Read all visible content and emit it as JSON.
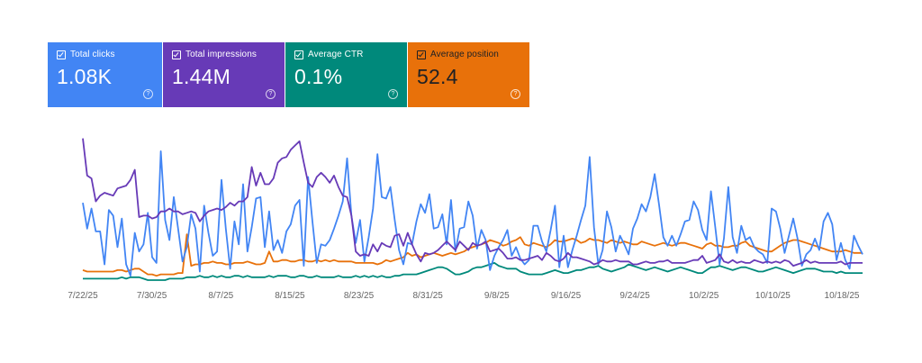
{
  "cards": [
    {
      "label": "Total clicks",
      "value": "1.08K",
      "color": "#4285f4"
    },
    {
      "label": "Total impressions",
      "value": "1.44M",
      "color": "#673ab7"
    },
    {
      "label": "Average CTR",
      "value": "0.1%",
      "color": "#00897b"
    },
    {
      "label": "Average position",
      "value": "52.4",
      "color": "#e8710a"
    }
  ],
  "chart_data": {
    "type": "line",
    "grid": false,
    "legend": "none",
    "x_start": "7/22/25",
    "x_end": "10/21/25",
    "xticks": [
      "7/22/25",
      "7/30/25",
      "8/7/25",
      "8/15/25",
      "8/23/25",
      "8/31/25",
      "9/8/25",
      "9/16/25",
      "9/24/25",
      "10/2/25",
      "10/10/25",
      "10/18/25"
    ],
    "ylim": [
      0,
      100
    ],
    "series": [
      {
        "color": "#4285f4",
        "values": [
          54,
          36,
          50,
          34,
          34,
          11,
          49,
          45,
          23,
          43,
          11,
          3,
          33,
          20,
          25,
          47,
          16,
          12,
          90,
          42,
          28,
          58,
          36,
          13,
          23,
          46,
          36,
          6,
          52,
          33,
          17,
          20,
          70,
          36,
          8,
          41,
          25,
          67,
          20,
          37,
          57,
          58,
          23,
          48,
          21,
          28,
          19,
          34,
          39,
          52,
          56,
          10,
          72,
          41,
          12,
          25,
          24,
          28,
          36,
          45,
          55,
          85,
          45,
          26,
          42,
          13,
          30,
          50,
          88,
          58,
          57,
          65,
          42,
          21,
          11,
          26,
          25,
          41,
          53,
          47,
          60,
          36,
          37,
          46,
          25,
          56,
          20,
          36,
          37,
          55,
          45,
          22,
          35,
          28,
          7,
          17,
          23,
          28,
          35,
          17,
          23,
          15,
          11,
          14,
          38,
          38,
          27,
          20,
          35,
          52,
          9,
          31,
          9,
          21,
          31,
          42,
          52,
          86,
          37,
          11,
          21,
          48,
          37,
          20,
          31,
          25,
          18,
          36,
          43,
          53,
          48,
          58,
          74,
          53,
          30,
          24,
          31,
          24,
          32,
          41,
          42,
          55,
          49,
          35,
          28,
          62,
          37,
          11,
          29,
          65,
          30,
          19,
          38,
          28,
          30,
          23,
          20,
          18,
          12,
          50,
          48,
          36,
          19,
          31,
          43,
          29,
          10,
          18,
          21,
          29,
          21,
          41,
          47,
          39,
          14,
          26,
          14,
          8,
          31,
          24,
          18
        ],
        "_note_unused": ""
      },
      {
        "color": "#673ab7",
        "values": [
          99,
          73,
          71,
          55,
          59,
          61,
          60,
          59,
          64,
          65,
          66,
          70,
          77,
          44,
          45,
          45,
          43,
          44,
          48,
          48,
          50,
          48,
          48,
          46,
          47,
          48,
          47,
          41,
          45,
          48,
          49,
          50,
          49,
          51,
          54,
          52,
          55,
          55,
          58,
          79,
          66,
          75,
          67,
          67,
          71,
          82,
          85,
          86,
          91,
          94,
          97,
          82,
          68,
          65,
          72,
          75,
          72,
          68,
          73,
          65,
          59,
          58,
          45,
          20,
          17,
          18,
          17,
          25,
          20,
          26,
          24,
          23,
          31,
          32,
          24,
          33,
          25,
          18,
          13,
          19,
          18,
          19,
          21,
          24,
          27,
          24,
          21,
          27,
          24,
          21,
          26,
          24,
          25,
          27,
          20,
          21,
          22,
          19,
          15,
          15,
          16,
          14,
          14,
          15,
          16,
          17,
          14,
          19,
          17,
          14,
          13,
          15,
          19,
          16,
          16,
          15,
          14,
          13,
          11,
          12,
          14,
          13,
          13,
          14,
          13,
          13,
          13,
          11,
          11,
          12,
          13,
          12,
          12,
          13,
          13,
          14,
          12,
          12,
          12,
          12,
          13,
          14,
          14,
          17,
          12,
          13,
          14,
          18,
          13,
          12,
          14,
          12,
          13,
          12,
          12,
          14,
          13,
          12,
          13,
          12,
          13,
          12,
          14,
          13,
          10,
          11,
          12,
          14,
          12,
          13,
          12,
          12,
          12,
          12,
          12,
          13,
          11,
          12,
          12,
          12,
          12
        ],
        "_note_unused": ""
      },
      {
        "color": "#e8710a",
        "values": [
          7,
          6,
          6,
          6,
          6,
          6,
          6,
          6,
          7,
          7,
          6,
          7,
          8,
          8,
          6,
          4,
          4,
          3,
          4,
          4,
          4,
          4,
          5,
          5,
          32,
          10,
          11,
          11,
          12,
          12,
          13,
          12,
          12,
          11,
          11,
          12,
          12,
          12,
          13,
          12,
          11,
          11,
          12,
          20,
          13,
          13,
          14,
          14,
          13,
          13,
          14,
          14,
          13,
          13,
          14,
          13,
          14,
          13,
          14,
          13,
          13,
          13,
          13,
          12,
          12,
          12,
          12,
          12,
          11,
          12,
          14,
          13,
          14,
          15,
          16,
          19,
          17,
          18,
          16,
          17,
          18,
          19,
          18,
          17,
          18,
          19,
          18,
          19,
          20,
          22,
          23,
          24,
          25,
          26,
          28,
          27,
          26,
          24,
          25,
          27,
          28,
          30,
          25,
          24,
          26,
          25,
          24,
          23,
          25,
          28,
          27,
          27,
          28,
          29,
          28,
          26,
          27,
          29,
          28,
          28,
          27,
          26,
          28,
          27,
          26,
          27,
          26,
          25,
          25,
          27,
          26,
          25,
          24,
          25,
          26,
          25,
          24,
          25,
          26,
          26,
          25,
          24,
          23,
          22,
          25,
          26,
          24,
          24,
          23,
          23,
          24,
          24,
          26,
          27,
          24,
          23,
          22,
          21,
          20,
          20,
          22,
          24,
          26,
          27,
          28,
          28,
          27,
          26,
          25,
          24,
          23,
          22,
          21,
          20,
          20,
          20,
          21,
          20,
          19,
          19,
          19
        ],
        "_note_unused": ""
      },
      {
        "color": "#00897b",
        "values": [
          1,
          1,
          1,
          1,
          1,
          1,
          1,
          1,
          1,
          2,
          1,
          2,
          2,
          2,
          1,
          0,
          0,
          0,
          0,
          0,
          1,
          1,
          1,
          1,
          2,
          2,
          2,
          3,
          2,
          2,
          3,
          2,
          3,
          2,
          2,
          3,
          3,
          2,
          3,
          2,
          2,
          2,
          2,
          3,
          2,
          3,
          3,
          3,
          2,
          2,
          3,
          3,
          2,
          2,
          3,
          2,
          2,
          2,
          2,
          3,
          2,
          2,
          2,
          3,
          2,
          3,
          2,
          3,
          2,
          3,
          2,
          2,
          3,
          3,
          4,
          4,
          4,
          4,
          5,
          6,
          7,
          8,
          9,
          9,
          8,
          6,
          4,
          4,
          5,
          6,
          8,
          9,
          9,
          10,
          11,
          12,
          10,
          9,
          8,
          8,
          8,
          6,
          5,
          4,
          4,
          4,
          4,
          5,
          6,
          7,
          6,
          5,
          5,
          6,
          7,
          7,
          8,
          9,
          9,
          10,
          8,
          7,
          6,
          7,
          8,
          9,
          11,
          10,
          9,
          8,
          7,
          8,
          9,
          8,
          7,
          6,
          7,
          8,
          9,
          8,
          7,
          6,
          5,
          5,
          7,
          9,
          9,
          10,
          9,
          8,
          7,
          8,
          9,
          9,
          8,
          7,
          6,
          6,
          7,
          8,
          9,
          8,
          7,
          6,
          5,
          6,
          7,
          8,
          8,
          8,
          7,
          6,
          6,
          6,
          5,
          6,
          5,
          5,
          5,
          5,
          5
        ],
        "_note_unused": ""
      }
    ]
  }
}
